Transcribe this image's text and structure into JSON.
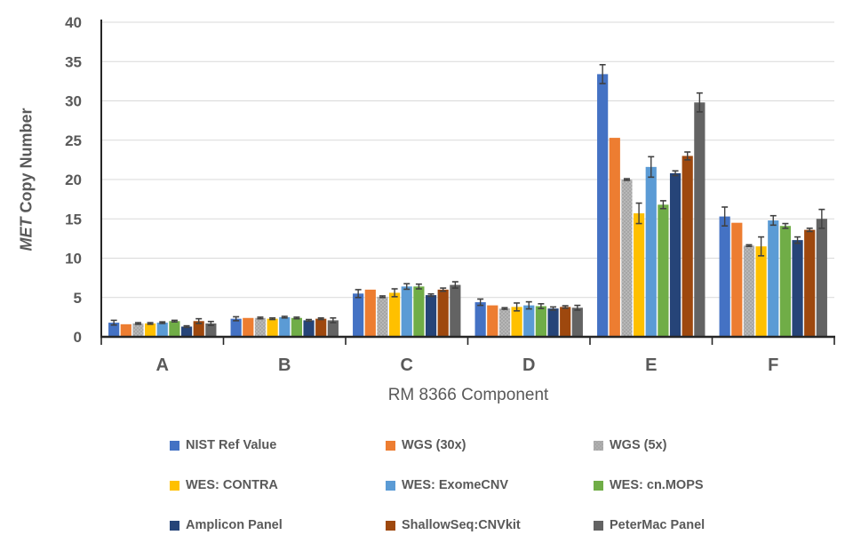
{
  "chart_data": {
    "type": "bar",
    "title": "",
    "xlabel": "RM 8366 Component",
    "ylabel": "MET Copy Number",
    "ylabel_italic": "MET",
    "ylabel_rest": " Copy Number",
    "categories": [
      "A",
      "B",
      "C",
      "D",
      "E",
      "F"
    ],
    "ylim": [
      0,
      40
    ],
    "yticks": [
      0,
      5,
      10,
      15,
      20,
      25,
      30,
      35,
      40
    ],
    "grid": true,
    "legend_position": "bottom",
    "colors": {
      "axis": "#262626",
      "gridline": "#D9D9D9",
      "text": "#595959",
      "error_bar": "#404040",
      "background": "#FFFFFF"
    },
    "series": [
      {
        "name": "NIST Ref Value",
        "color": "#4472C4",
        "pattern": "solid",
        "values": [
          1.8,
          2.3,
          5.5,
          4.4,
          33.4,
          15.3
        ],
        "errors": [
          0.3,
          0.25,
          0.5,
          0.4,
          1.2,
          1.2
        ]
      },
      {
        "name": "WGS (30x)",
        "color": "#ED7D31",
        "pattern": "solid",
        "values": [
          1.6,
          2.4,
          6.0,
          4.0,
          25.3,
          14.5
        ],
        "errors": [
          0,
          0,
          0,
          0,
          0,
          0
        ]
      },
      {
        "name": "WGS (5x)",
        "color": "#A6A6A6",
        "pattern": "dots",
        "values": [
          1.7,
          2.4,
          5.1,
          3.6,
          20.0,
          11.6
        ],
        "errors": [
          0.1,
          0.1,
          0.1,
          0.1,
          0.1,
          0.1
        ]
      },
      {
        "name": "WES: CONTRA",
        "color": "#FFC000",
        "pattern": "solid",
        "values": [
          1.7,
          2.3,
          5.6,
          3.8,
          15.7,
          11.5
        ],
        "errors": [
          0.1,
          0.1,
          0.5,
          0.5,
          1.3,
          1.2
        ]
      },
      {
        "name": "WES: ExomeCNV",
        "color": "#5B9BD5",
        "pattern": "solid",
        "values": [
          1.8,
          2.5,
          6.4,
          4.0,
          21.6,
          14.8
        ],
        "errors": [
          0.1,
          0.1,
          0.35,
          0.45,
          1.3,
          0.6
        ]
      },
      {
        "name": "WES: cn.MOPS",
        "color": "#70AD47",
        "pattern": "solid",
        "values": [
          2.0,
          2.4,
          6.4,
          3.9,
          16.8,
          14.1
        ],
        "errors": [
          0.1,
          0.1,
          0.3,
          0.3,
          0.5,
          0.3
        ]
      },
      {
        "name": "Amplicon Panel",
        "color": "#264478",
        "pattern": "solid",
        "values": [
          1.3,
          2.1,
          5.3,
          3.6,
          20.8,
          12.3
        ],
        "errors": [
          0.1,
          0.1,
          0.15,
          0.2,
          0.3,
          0.4
        ]
      },
      {
        "name": "ShallowSeq:CNVkit",
        "color": "#9E480E",
        "pattern": "solid",
        "values": [
          2.0,
          2.3,
          6.0,
          3.8,
          23.0,
          13.6
        ],
        "errors": [
          0.3,
          0.1,
          0.2,
          0.15,
          0.5,
          0.2
        ]
      },
      {
        "name": "PeterMac Panel",
        "color": "#636363",
        "pattern": "solid",
        "values": [
          1.7,
          2.1,
          6.6,
          3.7,
          29.8,
          15.0
        ],
        "errors": [
          0.25,
          0.3,
          0.4,
          0.3,
          1.2,
          1.2
        ]
      }
    ]
  }
}
